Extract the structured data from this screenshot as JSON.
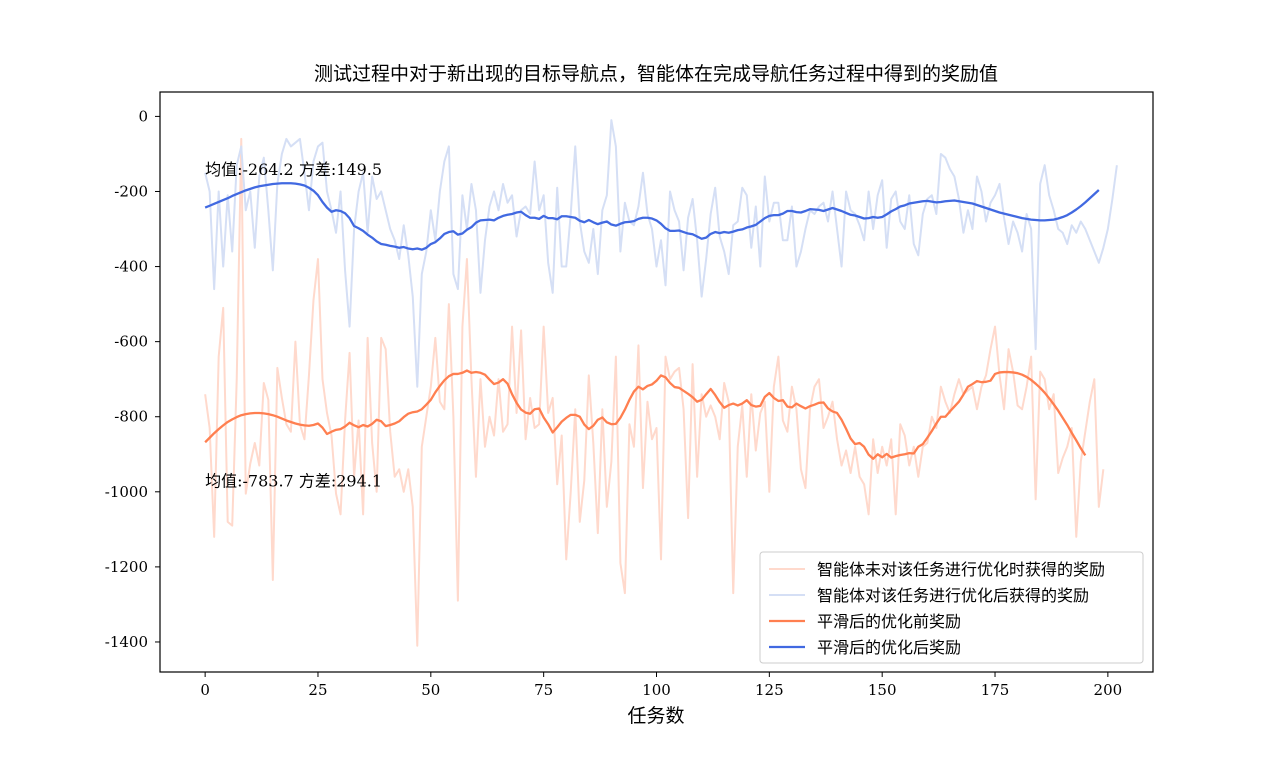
{
  "chart_data": {
    "type": "line",
    "title": "测试过程中对于新出现的目标导航点，智能体在完成导航任务过程中得到的奖励值",
    "xlabel": "任务数",
    "ylabel": "",
    "xlim": [
      -10,
      210
    ],
    "ylim": [
      -1480,
      65
    ],
    "xticks": [
      0,
      25,
      50,
      75,
      100,
      125,
      150,
      175,
      200
    ],
    "xtick_labels": [
      "0",
      "25",
      "50",
      "75",
      "100",
      "125",
      "150",
      "175",
      "200"
    ],
    "yticks": [
      0,
      -200,
      -400,
      -600,
      -800,
      -1000,
      -1200,
      -1400
    ],
    "ytick_labels": [
      "0",
      "-200",
      "-400",
      "-600",
      "-800",
      "-1000",
      "-1200",
      "-1400"
    ],
    "grid": false,
    "legend_position": "lower-right",
    "annotations": [
      {
        "text": "均值:-264.2 方差:149.5",
        "x": 0,
        "y": -140
      },
      {
        "text": "均值:-783.7 方差:294.1",
        "x": 0,
        "y": -970
      }
    ],
    "colors": {
      "raw_before": "#ffd9cc",
      "raw_after": "#d5dff5",
      "smooth_before": "#ff7f50",
      "smooth_after": "#4169e1"
    },
    "series": [
      {
        "name": "智能体未对该任务进行优化时获得的奖励",
        "role": "raw_before",
        "values": [
          -740,
          -830,
          -1120,
          -640,
          -510,
          -1080,
          -1090,
          -700,
          -60,
          -1005,
          -925,
          -870,
          -930,
          -710,
          -755,
          -1235,
          -670,
          -750,
          -820,
          -840,
          -600,
          -820,
          -860,
          -690,
          -490,
          -380,
          -700,
          -790,
          -850,
          -1005,
          -1060,
          -810,
          -630,
          -960,
          -810,
          -1060,
          -590,
          -870,
          -1000,
          -590,
          -620,
          -840,
          -960,
          -940,
          -1000,
          -940,
          -1040,
          -1410,
          -880,
          -800,
          -720,
          -590,
          -760,
          -780,
          -500,
          -800,
          -1290,
          -560,
          -380,
          -700,
          -960,
          -700,
          -880,
          -800,
          -850,
          -700,
          -840,
          -820,
          -560,
          -790,
          -570,
          -860,
          -750,
          -830,
          -820,
          -560,
          -790,
          -750,
          -980,
          -850,
          -1180,
          -1000,
          -780,
          -1080,
          -970,
          -690,
          -870,
          -1110,
          -780,
          -1040,
          -920,
          -640,
          -1190,
          -1270,
          -820,
          -880,
          -610,
          -990,
          -760,
          -860,
          -830,
          -1180,
          -640,
          -700,
          -680,
          -670,
          -780,
          -1070,
          -660,
          -960,
          -740,
          -800,
          -770,
          -800,
          -860,
          -710,
          -760,
          -1270,
          -880,
          -770,
          -960,
          -740,
          -890,
          -790,
          -760,
          -1000,
          -720,
          -640,
          -810,
          -840,
          -720,
          -780,
          -940,
          -990,
          -780,
          -720,
          -700,
          -830,
          -800,
          -760,
          -860,
          -930,
          -890,
          -950,
          -880,
          -960,
          -980,
          -1060,
          -860,
          -950,
          -880,
          -930,
          -860,
          -1060,
          -820,
          -850,
          -930,
          -880,
          -960,
          -880,
          -870,
          -800,
          -830,
          -720,
          -760,
          -790,
          -740,
          -700,
          -740,
          -730,
          -720,
          -780,
          -720,
          -690,
          -620,
          -560,
          -690,
          -780,
          -620,
          -680,
          -770,
          -780,
          -720,
          -640,
          -1020,
          -680,
          -700,
          -780,
          -740,
          -950,
          -910,
          -880,
          -830,
          -1120,
          -920,
          -840,
          -760,
          -700,
          -1040,
          -940
        ]
      },
      {
        "name": "智能体对该任务进行优化后获得的奖励",
        "role": "raw_after",
        "values": [
          -150,
          -200,
          -460,
          -200,
          -400,
          -210,
          -360,
          -130,
          -80,
          -250,
          -200,
          -350,
          -160,
          -110,
          -250,
          -410,
          -180,
          -100,
          -60,
          -80,
          -70,
          -60,
          -150,
          -250,
          -120,
          -80,
          -70,
          -200,
          -250,
          -310,
          -200,
          -410,
          -560,
          -300,
          -200,
          -150,
          -310,
          -160,
          -220,
          -200,
          -250,
          -300,
          -330,
          -380,
          -290,
          -370,
          -480,
          -720,
          -420,
          -360,
          -250,
          -330,
          -200,
          -120,
          -80,
          -420,
          -460,
          -210,
          -300,
          -180,
          -250,
          -470,
          -330,
          -240,
          -200,
          -250,
          -180,
          -230,
          -210,
          -320,
          -250,
          -240,
          -260,
          -120,
          -250,
          -210,
          -390,
          -470,
          -190,
          -400,
          -400,
          -260,
          -80,
          -280,
          -360,
          -390,
          -300,
          -420,
          -250,
          -210,
          -10,
          -80,
          -360,
          -230,
          -280,
          -290,
          -240,
          -150,
          -260,
          -300,
          -400,
          -330,
          -450,
          -200,
          -250,
          -280,
          -410,
          -270,
          -220,
          -330,
          -480,
          -380,
          -260,
          -190,
          -320,
          -360,
          -420,
          -290,
          -280,
          -190,
          -210,
          -350,
          -240,
          -400,
          -160,
          -280,
          -230,
          -230,
          -330,
          -330,
          -240,
          -400,
          -360,
          -300,
          -250,
          -260,
          -240,
          -230,
          -280,
          -200,
          -300,
          -400,
          -200,
          -250,
          -260,
          -290,
          -330,
          -200,
          -300,
          -210,
          -170,
          -350,
          -220,
          -200,
          -280,
          -300,
          -210,
          -340,
          -370,
          -260,
          -220,
          -210,
          -260,
          -100,
          -110,
          -140,
          -160,
          -220,
          -310,
          -250,
          -300,
          -160,
          -200,
          -280,
          -230,
          -210,
          -180,
          -270,
          -340,
          -280,
          -310,
          -360,
          -260,
          -300,
          -620,
          -180,
          -130,
          -210,
          -250,
          -300,
          -310,
          -340,
          -290,
          -310,
          -280,
          -300,
          -330,
          -360,
          -390,
          -350,
          -300,
          -220,
          -130
        ]
      },
      {
        "name": "平滑后的优化前奖励",
        "role": "smooth_before",
        "values": [
          -868,
          -856,
          -844,
          -833,
          -823,
          -814,
          -807,
          -801,
          -796,
          -793,
          -791,
          -790,
          -790,
          -791,
          -793,
          -796,
          -800,
          -805,
          -810,
          -814,
          -818,
          -821,
          -823,
          -824,
          -822,
          -818,
          -829,
          -846,
          -840,
          -835,
          -833,
          -826,
          -816,
          -823,
          -828,
          -822,
          -826,
          -819,
          -808,
          -812,
          -825,
          -822,
          -818,
          -812,
          -801,
          -792,
          -788,
          -786,
          -780,
          -768,
          -755,
          -735,
          -718,
          -703,
          -692,
          -686,
          -686,
          -683,
          -677,
          -683,
          -681,
          -683,
          -688,
          -701,
          -713,
          -709,
          -700,
          -712,
          -740,
          -763,
          -781,
          -789,
          -792,
          -780,
          -778,
          -802,
          -820,
          -842,
          -828,
          -813,
          -803,
          -795,
          -795,
          -800,
          -821,
          -833,
          -824,
          -808,
          -802,
          -815,
          -820,
          -819,
          -803,
          -781,
          -755,
          -733,
          -720,
          -727,
          -718,
          -714,
          -704,
          -690,
          -695,
          -710,
          -721,
          -723,
          -731,
          -739,
          -748,
          -760,
          -755,
          -740,
          -726,
          -742,
          -761,
          -776,
          -769,
          -765,
          -770,
          -765,
          -756,
          -769,
          -773,
          -771,
          -747,
          -737,
          -750,
          -758,
          -756,
          -773,
          -775,
          -765,
          -772,
          -778,
          -772,
          -768,
          -763,
          -762,
          -778,
          -786,
          -790,
          -808,
          -832,
          -858,
          -873,
          -870,
          -880,
          -901,
          -912,
          -900,
          -908,
          -899,
          -909,
          -905,
          -902,
          -900,
          -897,
          -898,
          -880,
          -873,
          -856,
          -838,
          -818,
          -800,
          -800,
          -786,
          -773,
          -760,
          -741,
          -720,
          -713,
          -705,
          -708,
          -707,
          -704,
          -686,
          -682,
          -681,
          -681,
          -682,
          -684,
          -688,
          -694,
          -702,
          -712,
          -723,
          -736,
          -751,
          -767,
          -784,
          -803,
          -822,
          -843,
          -863,
          -884,
          -903
        ]
      },
      {
        "name": "平滑后的优化后奖励",
        "role": "smooth_after",
        "values": [
          -243,
          -238,
          -233,
          -228,
          -223,
          -218,
          -212,
          -207,
          -202,
          -197,
          -193,
          -189,
          -186,
          -184,
          -182,
          -180,
          -179,
          -178,
          -178,
          -178,
          -179,
          -181,
          -184,
          -190,
          -198,
          -210,
          -228,
          -243,
          -254,
          -250,
          -252,
          -258,
          -271,
          -292,
          -298,
          -305,
          -315,
          -323,
          -333,
          -340,
          -342,
          -345,
          -347,
          -350,
          -348,
          -352,
          -354,
          -352,
          -355,
          -350,
          -340,
          -335,
          -325,
          -313,
          -308,
          -306,
          -315,
          -312,
          -302,
          -295,
          -283,
          -277,
          -276,
          -275,
          -277,
          -270,
          -265,
          -262,
          -260,
          -256,
          -254,
          -263,
          -270,
          -270,
          -273,
          -265,
          -271,
          -271,
          -274,
          -266,
          -266,
          -268,
          -270,
          -278,
          -282,
          -276,
          -282,
          -287,
          -283,
          -280,
          -288,
          -291,
          -286,
          -282,
          -281,
          -279,
          -273,
          -270,
          -270,
          -272,
          -277,
          -286,
          -298,
          -305,
          -305,
          -304,
          -308,
          -312,
          -314,
          -320,
          -326,
          -323,
          -313,
          -308,
          -311,
          -308,
          -310,
          -307,
          -303,
          -301,
          -296,
          -293,
          -289,
          -280,
          -271,
          -265,
          -263,
          -263,
          -259,
          -252,
          -252,
          -255,
          -256,
          -252,
          -247,
          -248,
          -249,
          -252,
          -248,
          -244,
          -248,
          -252,
          -257,
          -262,
          -264,
          -268,
          -272,
          -271,
          -268,
          -270,
          -268,
          -261,
          -253,
          -247,
          -240,
          -237,
          -232,
          -230,
          -228,
          -226,
          -225,
          -227,
          -229,
          -228,
          -226,
          -225,
          -224,
          -226,
          -228,
          -230,
          -232,
          -236,
          -240,
          -244,
          -248,
          -252,
          -256,
          -259,
          -262,
          -265,
          -268,
          -271,
          -273,
          -275,
          -276,
          -277,
          -277,
          -276,
          -275,
          -272,
          -268,
          -263,
          -256,
          -248,
          -239,
          -229,
          -218,
          -207,
          -196
        ]
      }
    ]
  }
}
